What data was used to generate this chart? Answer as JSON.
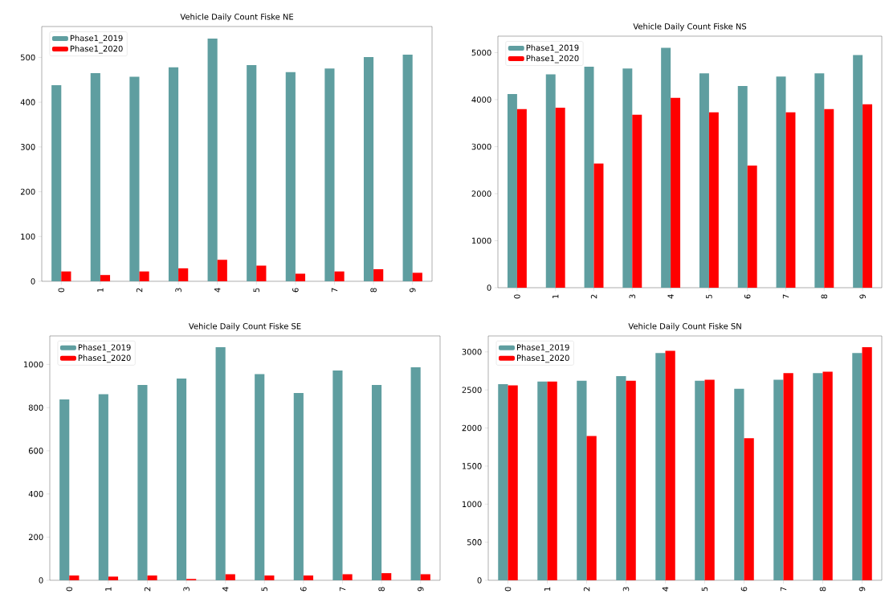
{
  "chart_data": [
    {
      "type": "bar",
      "title": "Vehicle Daily Count Fiske NE",
      "categories": [
        "0",
        "1",
        "2",
        "3",
        "4",
        "5",
        "6",
        "7",
        "8",
        "9"
      ],
      "ylim": [
        0,
        569
      ],
      "yticks": [
        0,
        100,
        200,
        300,
        400,
        500
      ],
      "legend": "top left",
      "series": [
        {
          "name": "Phase1_2019",
          "color": "#5f9ea0",
          "values": [
            438,
            465,
            457,
            478,
            542,
            483,
            467,
            475,
            501,
            506
          ]
        },
        {
          "name": "Phase1_2020",
          "color": "#ff0000",
          "values": [
            22,
            14,
            22,
            29,
            48,
            35,
            17,
            22,
            27,
            19
          ]
        }
      ]
    },
    {
      "type": "bar",
      "title": "Vehicle Daily Count Fiske NS",
      "categories": [
        "0",
        "1",
        "2",
        "3",
        "4",
        "5",
        "6",
        "7",
        "8",
        "9"
      ],
      "ylim": [
        0,
        5350
      ],
      "yticks": [
        0,
        1000,
        2000,
        3000,
        4000,
        5000
      ],
      "legend": "top left",
      "series": [
        {
          "name": "Phase1_2019",
          "color": "#5f9ea0",
          "values": [
            4120,
            4540,
            4700,
            4660,
            5100,
            4560,
            4290,
            4490,
            4560,
            4950
          ]
        },
        {
          "name": "Phase1_2020",
          "color": "#ff0000",
          "values": [
            3800,
            3830,
            2640,
            3680,
            4040,
            3730,
            2600,
            3730,
            3800,
            3900
          ]
        }
      ]
    },
    {
      "type": "bar",
      "title": "Vehicle Daily Count Fiske SE",
      "categories": [
        "0",
        "1",
        "2",
        "3",
        "4",
        "5",
        "6",
        "7",
        "8",
        "9"
      ],
      "ylim": [
        0,
        1132
      ],
      "yticks": [
        0,
        200,
        400,
        600,
        800,
        1000
      ],
      "legend": "top left",
      "series": [
        {
          "name": "Phase1_2019",
          "color": "#5f9ea0",
          "values": [
            838,
            862,
            905,
            935,
            1080,
            955,
            868,
            972,
            905,
            987
          ]
        },
        {
          "name": "Phase1_2020",
          "color": "#ff0000",
          "values": [
            22,
            17,
            22,
            6,
            28,
            22,
            22,
            28,
            33,
            28
          ]
        }
      ]
    },
    {
      "type": "bar",
      "title": "Vehicle Daily Count Fiske SN",
      "categories": [
        "0",
        "1",
        "2",
        "3",
        "4",
        "5",
        "6",
        "7",
        "8",
        "9"
      ],
      "ylim": [
        0,
        3209
      ],
      "yticks": [
        0,
        500,
        1000,
        1500,
        2000,
        2500,
        3000
      ],
      "legend": "top left",
      "series": [
        {
          "name": "Phase1_2019",
          "color": "#5f9ea0",
          "values": [
            2575,
            2610,
            2620,
            2680,
            2985,
            2620,
            2515,
            2635,
            2720,
            2985
          ]
        },
        {
          "name": "Phase1_2020",
          "color": "#ff0000",
          "values": [
            2560,
            2610,
            1895,
            2620,
            3015,
            2635,
            1865,
            2720,
            2740,
            3060
          ]
        }
      ]
    }
  ]
}
